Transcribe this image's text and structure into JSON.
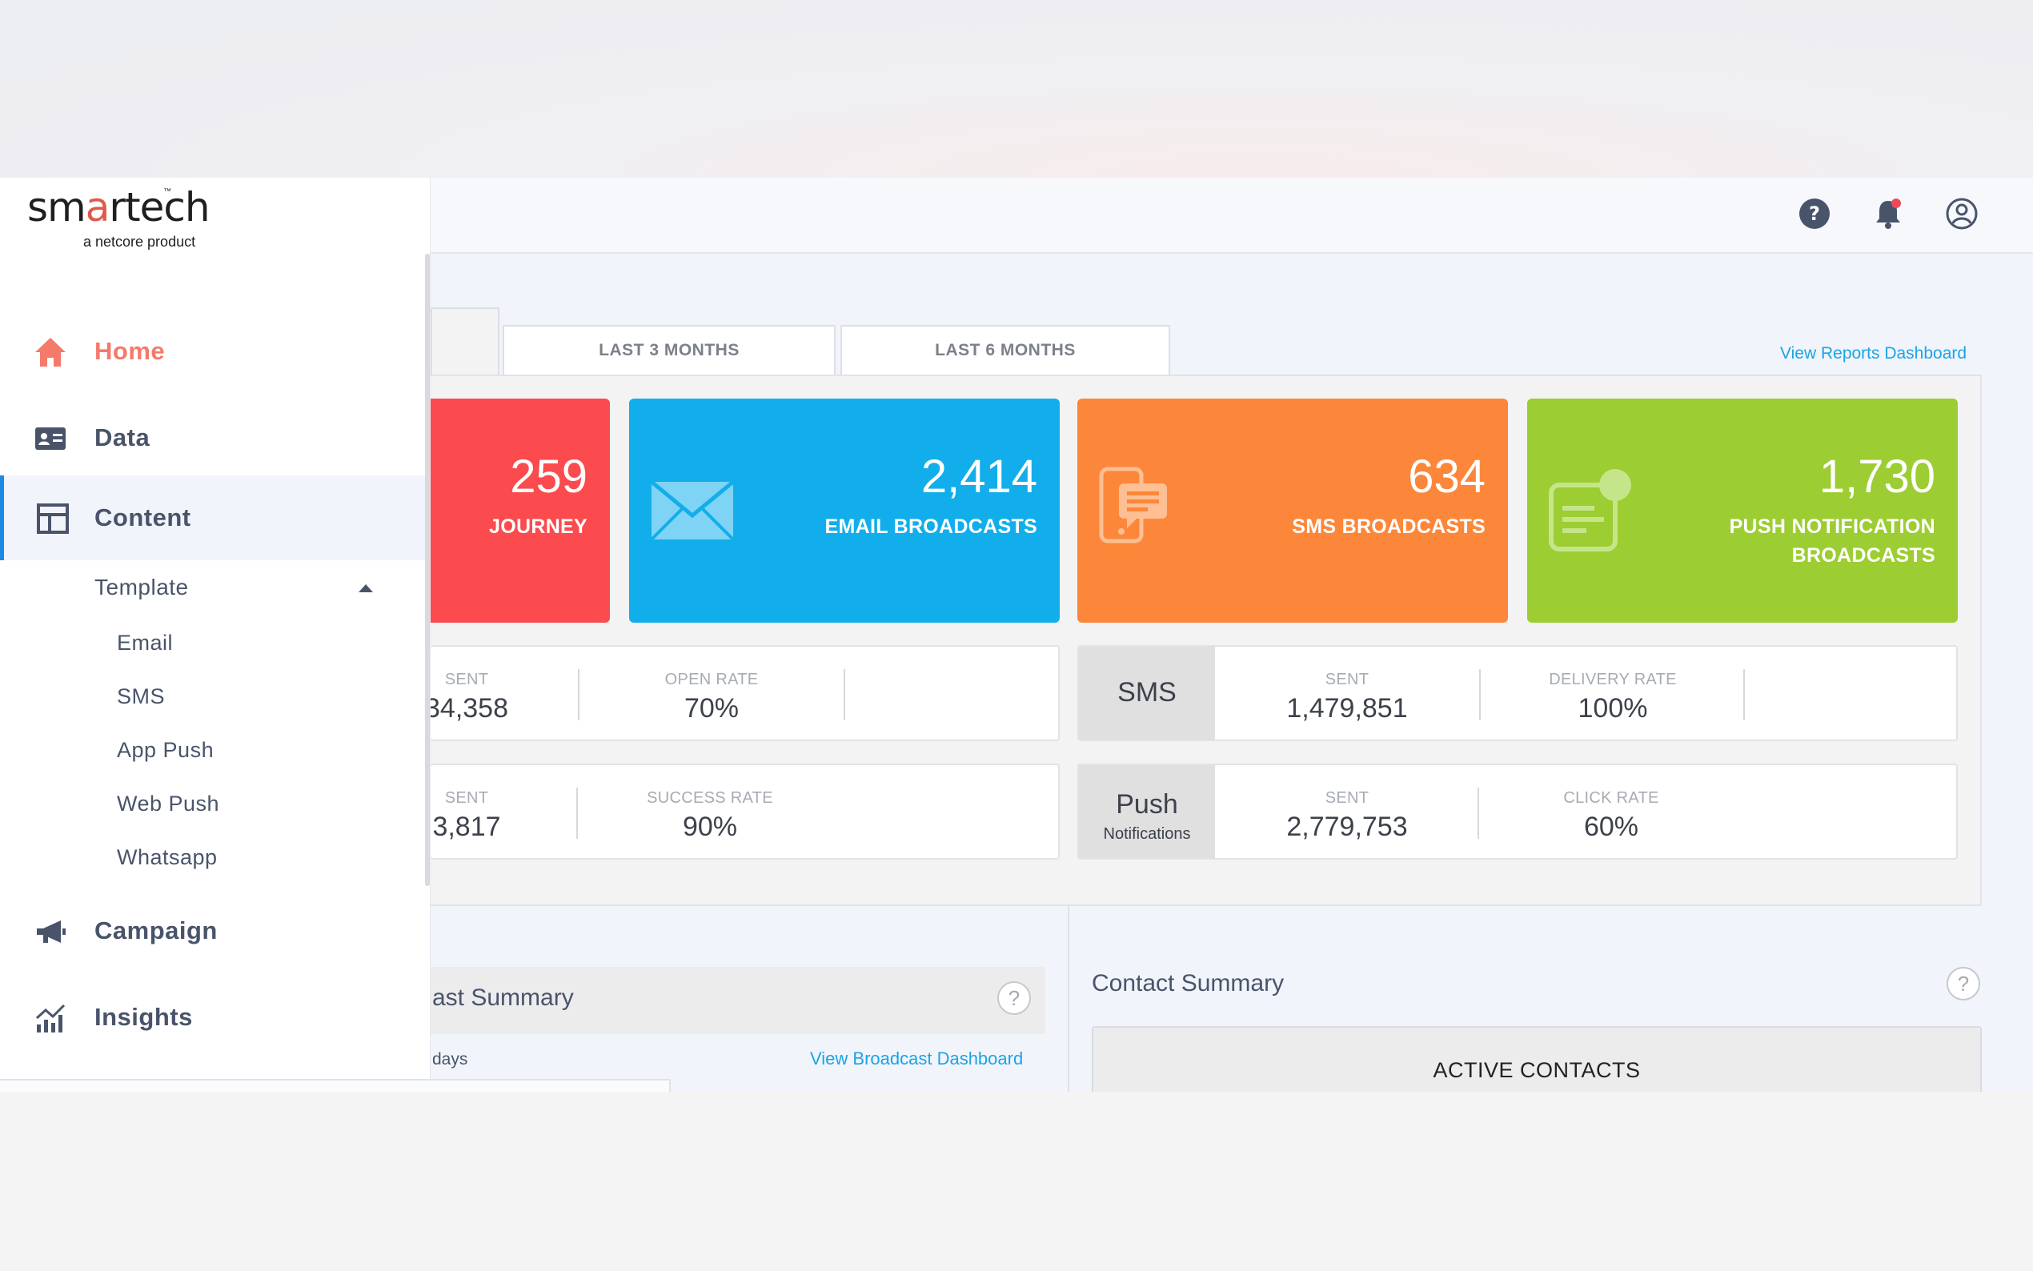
{
  "brand": {
    "logo_text_start": "sm",
    "logo_text_accent": "a",
    "logo_text_end": "rtech",
    "trademark": "™",
    "tagline": "a netcore product"
  },
  "topbar": {
    "icons": [
      "help-icon",
      "notification-bell-icon",
      "user-profile-icon"
    ],
    "notification_dot_color": "#f04a5a"
  },
  "sidebar": {
    "items": [
      {
        "label": "Home",
        "icon": "home-icon",
        "color": "#f47a6a"
      },
      {
        "label": "Data",
        "icon": "id-card-icon"
      },
      {
        "label": "Content",
        "icon": "layout-icon"
      },
      {
        "label": "Campaign",
        "icon": "megaphone-icon"
      },
      {
        "label": "Insights",
        "icon": "analytics-icon"
      }
    ],
    "template": {
      "label": "Template",
      "children": [
        "Email",
        "SMS",
        "App Push",
        "Web Push",
        "Whatsapp"
      ]
    },
    "accent_color": "#1e88e5"
  },
  "tabs": [
    "LAST 3 MONTHS",
    "LAST 6 MONTHS"
  ],
  "view_reports_link": "View Reports Dashboard",
  "cards": [
    {
      "value": "259",
      "label": "JOURNEY",
      "color": "#fb4b4e"
    },
    {
      "value": "2,414",
      "label": "EMAIL BROADCASTS",
      "color": "#12aeeb"
    },
    {
      "value": "634",
      "label": "SMS BROADCASTS",
      "color": "#fc873a"
    },
    {
      "value": "1,730",
      "label_line1": "PUSH NOTIFICATION",
      "label_line2": "BROADCASTS",
      "color": "#9ccd32"
    }
  ],
  "stats": {
    "email_row": {
      "sent_key": "SENT",
      "sent_value": "34,358",
      "open_key": "OPEN RATE",
      "open_value": "70%"
    },
    "journey_row": {
      "sent_key": "SENT",
      "sent_value": "3,817",
      "success_key": "SUCCESS RATE",
      "success_value": "90%"
    },
    "sms_row": {
      "channel": "SMS",
      "sent_key": "SENT",
      "sent_value": "1,479,851",
      "delivery_key": "DELIVERY RATE",
      "delivery_value": "100%"
    },
    "push_row": {
      "channel": "Push",
      "channel_sub": "Notifications",
      "sent_key": "SENT",
      "sent_value": "2,779,753",
      "click_key": "CLICK RATE",
      "click_value": "60%"
    }
  },
  "broadcast_summary": {
    "title": "ast Summary",
    "days_label": "days",
    "link": "View Broadcast Dashboard",
    "help": "?"
  },
  "contact_summary": {
    "title": "Contact Summary",
    "help": "?",
    "active_label": "ACTIVE CONTACTS"
  }
}
